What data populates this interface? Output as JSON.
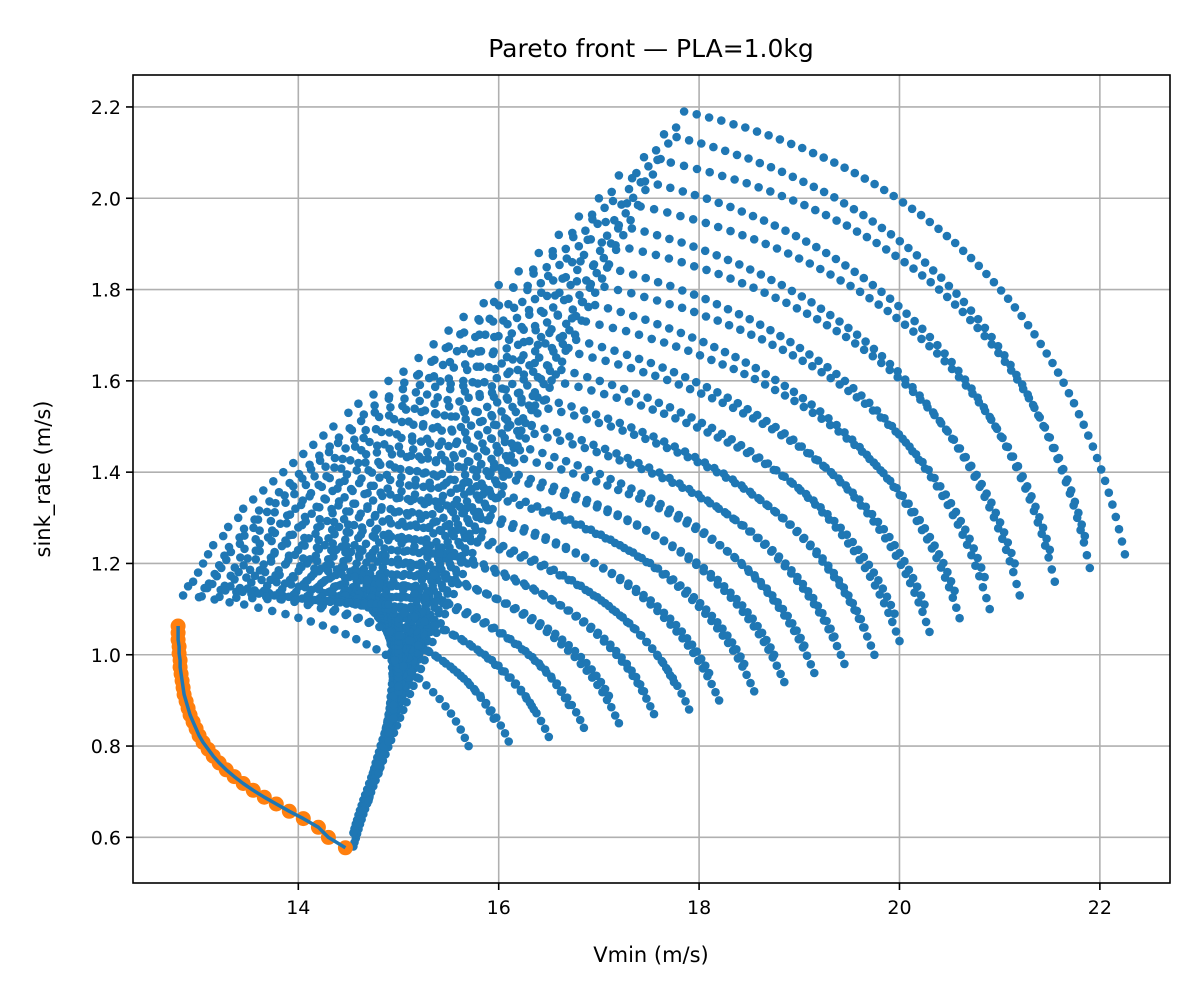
{
  "chart_data": {
    "type": "scatter",
    "title": "Pareto front — PLA=1.0kg",
    "xlabel": "Vmin (m/s)",
    "ylabel": "sink_rate (m/s)",
    "xlim": [
      12.35,
      22.7
    ],
    "ylim": [
      0.5,
      2.27
    ],
    "xticks": [
      14,
      16,
      18,
      20,
      22
    ],
    "yticks": [
      0.6,
      0.8,
      1.0,
      1.2,
      1.4,
      1.6,
      1.8,
      2.0,
      2.2
    ],
    "grid": true,
    "sweep_families": [
      {
        "apex": [
          17.85,
          2.19
        ],
        "low": [
          14.55,
          0.58
        ],
        "right": [
          22.25,
          1.22
        ]
      },
      {
        "apex": [
          17.65,
          2.14
        ],
        "low": [
          14.55,
          0.61
        ],
        "right": [
          21.9,
          1.19
        ]
      },
      {
        "apex": [
          17.45,
          2.09
        ],
        "low": [
          14.6,
          0.63
        ],
        "right": [
          21.85,
          1.26
        ]
      },
      {
        "apex": [
          17.2,
          2.05
        ],
        "low": [
          14.65,
          0.66
        ],
        "right": [
          21.55,
          1.16
        ]
      },
      {
        "apex": [
          17.0,
          2.0
        ],
        "low": [
          14.7,
          0.68
        ],
        "right": [
          21.5,
          1.23
        ]
      },
      {
        "apex": [
          16.8,
          1.96
        ],
        "low": [
          14.7,
          0.7
        ],
        "right": [
          21.2,
          1.13
        ]
      },
      {
        "apex": [
          16.6,
          1.92
        ],
        "low": [
          14.75,
          0.72
        ],
        "right": [
          21.15,
          1.2
        ]
      },
      {
        "apex": [
          16.4,
          1.88
        ],
        "low": [
          14.8,
          0.74
        ],
        "right": [
          20.9,
          1.1
        ]
      },
      {
        "apex": [
          16.2,
          1.84
        ],
        "low": [
          14.8,
          0.76
        ],
        "right": [
          20.85,
          1.17
        ]
      },
      {
        "apex": [
          16.0,
          1.81
        ],
        "low": [
          14.85,
          0.78
        ],
        "right": [
          20.6,
          1.08
        ]
      },
      {
        "apex": [
          15.85,
          1.77
        ],
        "low": [
          14.85,
          0.8
        ],
        "right": [
          20.55,
          1.14
        ]
      },
      {
        "apex": [
          15.65,
          1.74
        ],
        "low": [
          14.9,
          0.81
        ],
        "right": [
          20.3,
          1.05
        ]
      },
      {
        "apex": [
          15.5,
          1.71
        ],
        "low": [
          14.9,
          0.83
        ],
        "right": [
          20.25,
          1.11
        ]
      },
      {
        "apex": [
          15.35,
          1.68
        ],
        "low": [
          14.9,
          0.85
        ],
        "right": [
          20.0,
          1.03
        ]
      },
      {
        "apex": [
          15.2,
          1.65
        ],
        "low": [
          14.95,
          0.86
        ],
        "right": [
          19.95,
          1.09
        ]
      },
      {
        "apex": [
          15.05,
          1.62
        ],
        "low": [
          14.95,
          0.88
        ],
        "right": [
          19.75,
          1.0
        ]
      },
      {
        "apex": [
          14.9,
          1.6
        ],
        "low": [
          14.95,
          0.89
        ],
        "right": [
          19.65,
          1.06
        ]
      },
      {
        "apex": [
          14.75,
          1.57
        ],
        "low": [
          14.95,
          0.91
        ],
        "right": [
          19.45,
          0.98
        ]
      },
      {
        "apex": [
          14.6,
          1.55
        ],
        "low": [
          15.0,
          0.92
        ],
        "right": [
          19.35,
          1.04
        ]
      },
      {
        "apex": [
          14.5,
          1.53
        ],
        "low": [
          15.0,
          0.93
        ],
        "right": [
          19.15,
          0.96
        ]
      },
      {
        "apex": [
          14.35,
          1.5
        ],
        "low": [
          15.0,
          0.95
        ],
        "right": [
          19.05,
          1.02
        ]
      },
      {
        "apex": [
          14.25,
          1.48
        ],
        "low": [
          15.0,
          0.96
        ],
        "right": [
          18.85,
          0.94
        ]
      },
      {
        "apex": [
          14.15,
          1.46
        ],
        "low": [
          15.0,
          0.97
        ],
        "right": [
          18.75,
          1.0
        ]
      },
      {
        "apex": [
          14.05,
          1.44
        ],
        "low": [
          15.0,
          0.98
        ],
        "right": [
          18.55,
          0.92
        ]
      },
      {
        "apex": [
          13.95,
          1.42
        ],
        "low": [
          15.0,
          0.99
        ],
        "right": [
          18.45,
          0.98
        ]
      },
      {
        "apex": [
          13.85,
          1.4
        ],
        "low": [
          15.0,
          1.0
        ],
        "right": [
          18.2,
          0.9
        ]
      },
      {
        "apex": [
          13.75,
          1.38
        ],
        "low": [
          15.0,
          1.01
        ],
        "right": [
          18.1,
          0.96
        ]
      },
      {
        "apex": [
          13.65,
          1.36
        ],
        "low": [
          15.0,
          1.02
        ],
        "right": [
          17.9,
          0.88
        ]
      },
      {
        "apex": [
          13.55,
          1.34
        ],
        "low": [
          15.0,
          1.03
        ],
        "right": [
          17.75,
          0.94
        ]
      },
      {
        "apex": [
          13.45,
          1.32
        ],
        "low": [
          15.0,
          1.04
        ],
        "right": [
          17.55,
          0.87
        ]
      },
      {
        "apex": [
          13.4,
          1.3
        ],
        "low": [
          15.0,
          1.05
        ],
        "right": [
          17.45,
          0.92
        ]
      },
      {
        "apex": [
          13.3,
          1.28
        ],
        "low": [
          15.0,
          1.06
        ],
        "right": [
          17.2,
          0.85
        ]
      },
      {
        "apex": [
          13.25,
          1.26
        ],
        "low": [
          15.0,
          1.07
        ],
        "right": [
          17.1,
          0.91
        ]
      },
      {
        "apex": [
          13.15,
          1.24
        ],
        "low": [
          15.0,
          1.07
        ],
        "right": [
          16.85,
          0.84
        ]
      },
      {
        "apex": [
          13.1,
          1.22
        ],
        "low": [
          15.0,
          1.08
        ],
        "right": [
          16.7,
          0.89
        ]
      },
      {
        "apex": [
          13.05,
          1.2
        ],
        "low": [
          14.95,
          1.09
        ],
        "right": [
          16.5,
          0.82
        ]
      },
      {
        "apex": [
          13.0,
          1.18
        ],
        "low": [
          14.95,
          1.09
        ],
        "right": [
          16.35,
          0.88
        ]
      },
      {
        "apex": [
          12.95,
          1.16
        ],
        "low": [
          14.95,
          1.1
        ],
        "right": [
          16.1,
          0.81
        ]
      },
      {
        "apex": [
          12.9,
          1.15
        ],
        "low": [
          14.9,
          1.1
        ],
        "right": [
          15.95,
          0.86
        ]
      },
      {
        "apex": [
          12.85,
          1.13
        ],
        "low": [
          14.9,
          1.11
        ],
        "right": [
          15.7,
          0.8
        ]
      }
    ],
    "series": [
      {
        "marker": "dot",
        "color": "#1f77b4",
        "points": []
      },
      {
        "marker": "circle",
        "color": "#ff7f0e",
        "line_color": "#1f77b4",
        "points": [
          [
            12.8,
            1.063
          ],
          [
            12.8,
            1.048
          ],
          [
            12.8,
            1.033
          ],
          [
            12.81,
            1.018
          ],
          [
            12.81,
            1.003
          ],
          [
            12.82,
            0.988
          ],
          [
            12.82,
            0.973
          ],
          [
            12.83,
            0.958
          ],
          [
            12.84,
            0.943
          ],
          [
            12.85,
            0.928
          ],
          [
            12.86,
            0.913
          ],
          [
            12.88,
            0.898
          ],
          [
            12.9,
            0.883
          ],
          [
            12.92,
            0.868
          ],
          [
            12.95,
            0.853
          ],
          [
            12.98,
            0.838
          ],
          [
            13.01,
            0.823
          ],
          [
            13.05,
            0.808
          ],
          [
            13.1,
            0.793
          ],
          [
            13.15,
            0.778
          ],
          [
            13.21,
            0.763
          ],
          [
            13.28,
            0.748
          ],
          [
            13.36,
            0.733
          ],
          [
            13.45,
            0.718
          ],
          [
            13.55,
            0.703
          ],
          [
            13.66,
            0.688
          ],
          [
            13.78,
            0.673
          ],
          [
            13.91,
            0.657
          ],
          [
            14.05,
            0.641
          ],
          [
            14.2,
            0.622
          ],
          [
            14.3,
            0.6
          ],
          [
            14.47,
            0.577
          ]
        ]
      }
    ]
  }
}
